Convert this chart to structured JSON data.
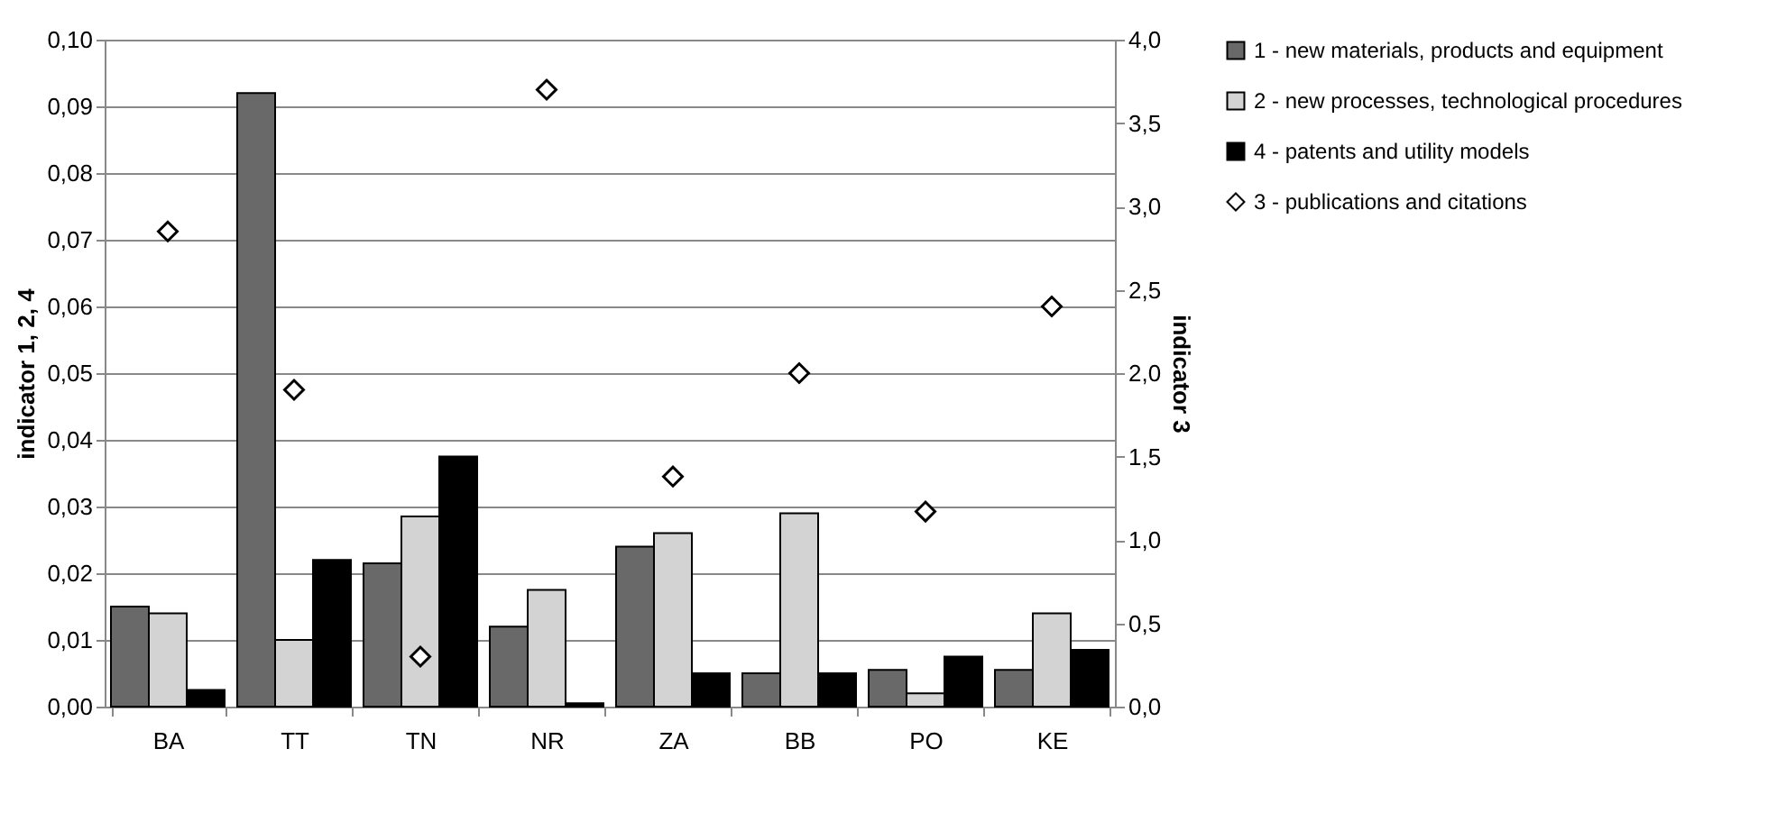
{
  "chart_data": {
    "type": "bar",
    "ylabel": "indicator 1, 2, 4",
    "y2label": "indicator 3",
    "categories": [
      "BA",
      "TT",
      "TN",
      "NR",
      "ZA",
      "BB",
      "PO",
      "KE"
    ],
    "series": [
      {
        "name": "1 - new materials, products and equipment",
        "color": "#696969",
        "values": [
          0.015,
          0.092,
          0.0215,
          0.012,
          0.024,
          0.005,
          0.0055,
          0.0055
        ]
      },
      {
        "name": "2 - new processes, technological procedures",
        "color": "#d3d3d3",
        "values": [
          0.014,
          0.01,
          0.0285,
          0.0175,
          0.026,
          0.029,
          0.002,
          0.014
        ]
      },
      {
        "name": "4 - patents and utility models",
        "color": "#000000",
        "values": [
          0.0025,
          0.022,
          0.0375,
          0.0005,
          0.005,
          0.005,
          0.0075,
          0.0085
        ]
      },
      {
        "name": "3 - publications and citations",
        "type": "scatter",
        "axis": "y2",
        "marker": "diamond",
        "color": "#ffffff",
        "values": [
          2.85,
          1.9,
          0.3,
          3.7,
          1.38,
          2.0,
          1.17,
          2.4
        ]
      }
    ],
    "ylim": [
      0,
      0.1
    ],
    "yticks": [
      {
        "value": 0,
        "label": "0,00"
      },
      {
        "value": 0.01,
        "label": "0,01"
      },
      {
        "value": 0.02,
        "label": "0,02"
      },
      {
        "value": 0.03,
        "label": "0,03"
      },
      {
        "value": 0.04,
        "label": "0,04"
      },
      {
        "value": 0.05,
        "label": "0,05"
      },
      {
        "value": 0.06,
        "label": "0,06"
      },
      {
        "value": 0.07,
        "label": "0,07"
      },
      {
        "value": 0.08,
        "label": "0,08"
      },
      {
        "value": 0.09,
        "label": "0,09"
      },
      {
        "value": 0.1,
        "label": "0,10"
      }
    ],
    "y2lim": [
      0,
      4
    ],
    "y2ticks": [
      {
        "value": 0,
        "label": "0,0"
      },
      {
        "value": 0.5,
        "label": "0,5"
      },
      {
        "value": 1,
        "label": "1,0"
      },
      {
        "value": 1.5,
        "label": "1,5"
      },
      {
        "value": 2,
        "label": "2,0"
      },
      {
        "value": 2.5,
        "label": "2,5"
      },
      {
        "value": 3,
        "label": "3,0"
      },
      {
        "value": 3.5,
        "label": "3,5"
      },
      {
        "value": 4,
        "label": "4,0"
      }
    ],
    "grid": "y",
    "legend": "right"
  }
}
